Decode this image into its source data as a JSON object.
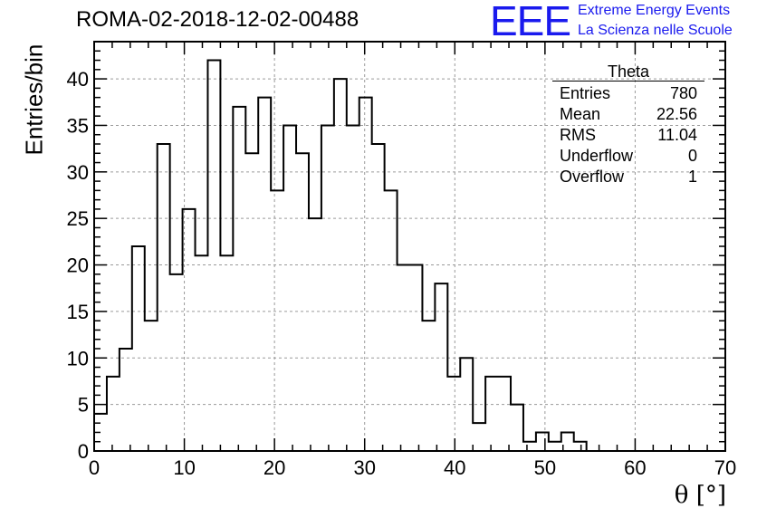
{
  "header": {
    "run_title": "ROMA-02-2018-12-02-00488",
    "logo_letters": "EEE",
    "logo_line1": "Extreme Energy Events",
    "logo_line2": "La Scienza nelle Scuole",
    "logo_color": "#1a1aee"
  },
  "stats_box": {
    "title": "Theta",
    "rows": [
      {
        "label": "Entries",
        "value": "780"
      },
      {
        "label": "Mean",
        "value": "22.56"
      },
      {
        "label": "RMS",
        "value": "11.04"
      },
      {
        "label": "Underflow",
        "value": "0"
      },
      {
        "label": "Overflow",
        "value": "1"
      }
    ]
  },
  "chart_data": {
    "type": "histogram",
    "title": "ROMA-02-2018-12-02-00488",
    "xlabel": "θ [°]",
    "ylabel": "Entries/bin",
    "xlim": [
      0,
      70
    ],
    "ylim": [
      0,
      44
    ],
    "bin_width": 1.4,
    "grid": true,
    "legend": "top-right",
    "x_ticks": [
      0,
      10,
      20,
      30,
      40,
      50,
      60,
      70
    ],
    "y_ticks": [
      0,
      5,
      10,
      15,
      20,
      25,
      30,
      35,
      40
    ],
    "values": [
      4,
      8,
      11,
      22,
      14,
      33,
      19,
      26,
      21,
      42,
      21,
      37,
      32,
      38,
      28,
      35,
      32,
      25,
      35,
      40,
      35,
      38,
      33,
      28,
      20,
      20,
      14,
      18,
      8,
      10,
      3,
      8,
      8,
      5,
      1,
      2,
      1,
      2,
      1,
      0,
      0,
      0,
      0,
      0,
      0,
      0,
      0,
      0,
      0,
      0
    ],
    "line_color": "#000000"
  }
}
